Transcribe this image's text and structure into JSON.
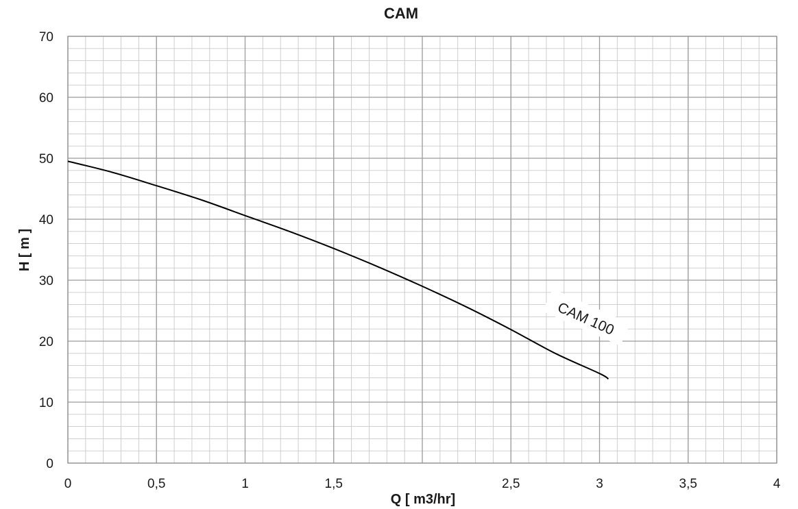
{
  "chart_data": {
    "type": "line",
    "title": "CAM",
    "xlabel": "Q [ m3/hr]",
    "ylabel": "H [ m ]",
    "xlim": [
      0,
      4
    ],
    "ylim": [
      0,
      70
    ],
    "x_ticks": [
      0,
      0.5,
      1,
      1.5,
      2,
      2.5,
      3,
      3.5,
      4
    ],
    "x_tick_labels": [
      "0",
      "0,5",
      "1",
      "1,5",
      "",
      "2,5",
      "3",
      "3,5",
      "4"
    ],
    "y_ticks": [
      0,
      10,
      20,
      30,
      40,
      50,
      60,
      70
    ],
    "y_tick_labels": [
      "0",
      "10",
      "20",
      "30",
      "40",
      "50",
      "60",
      "70"
    ],
    "x_minor_step": 0.1,
    "y_minor_step": 2,
    "grid": true,
    "legend": "none",
    "series": [
      {
        "name": "CAM 100",
        "color": "#000000",
        "x": [
          0,
          0.25,
          0.5,
          0.75,
          1.0,
          1.25,
          1.5,
          1.75,
          2.0,
          2.25,
          2.5,
          2.75,
          3.0,
          3.05
        ],
        "y": [
          49.5,
          47.7,
          45.5,
          43.2,
          40.6,
          38.0,
          35.2,
          32.2,
          29.0,
          25.6,
          21.9,
          18.0,
          14.7,
          13.8
        ]
      }
    ]
  }
}
